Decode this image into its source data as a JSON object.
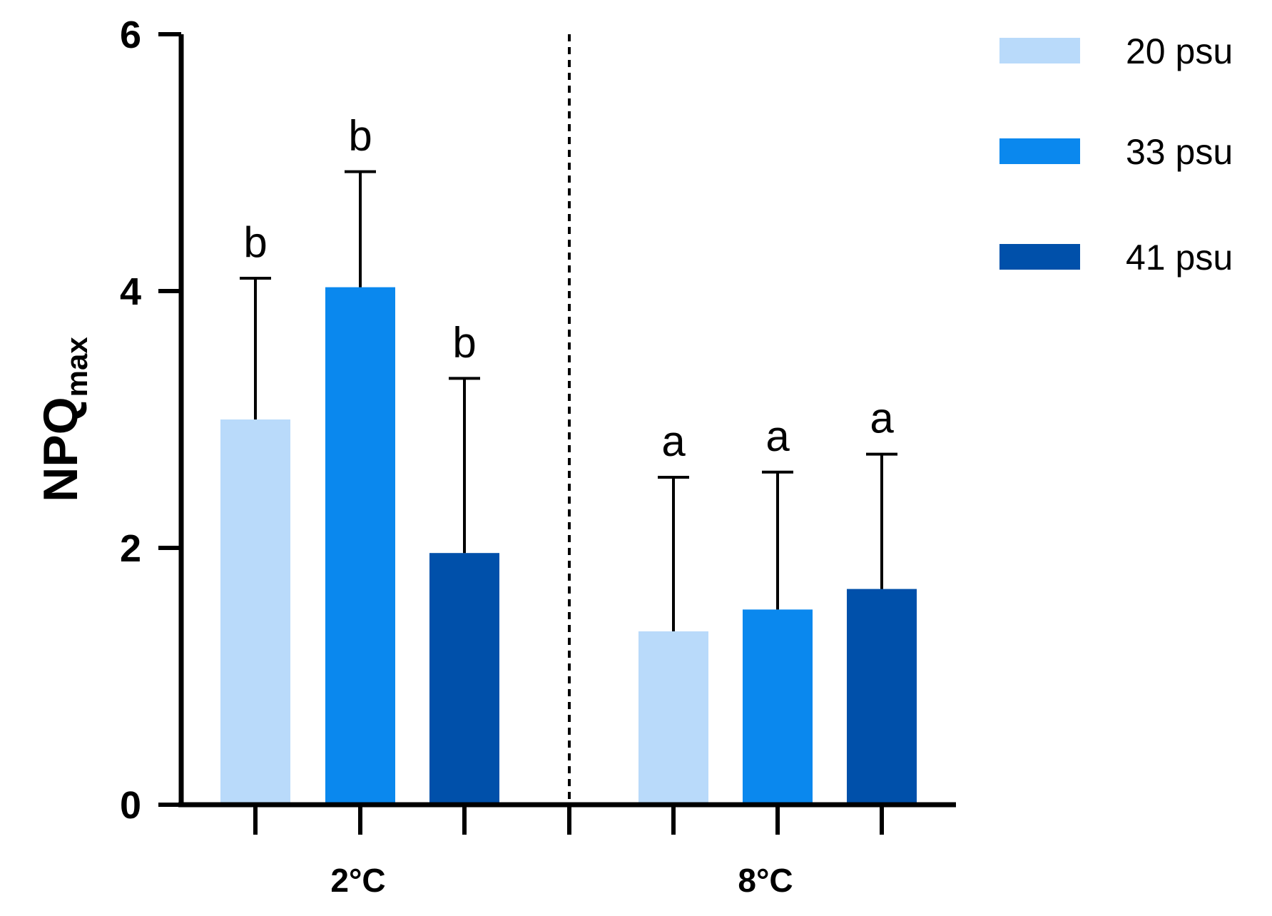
{
  "chart_data": {
    "type": "bar",
    "ylabel": {
      "main": "NPQ",
      "sub": "max"
    },
    "xlabel": "",
    "ylim": [
      0,
      6
    ],
    "yticks": [
      "0",
      "2",
      "4",
      "6"
    ],
    "grid": false,
    "legend_position": "top-right",
    "groups": [
      "2°C",
      "8°C"
    ],
    "series": [
      {
        "name": "20 psu",
        "color": "#b9dafa",
        "values": [
          3.0,
          1.35
        ],
        "errors": [
          1.1,
          1.2
        ],
        "letters": [
          "b",
          "a"
        ]
      },
      {
        "name": "33 psu",
        "color": "#0a88ee",
        "values": [
          4.03,
          1.52
        ],
        "errors": [
          0.9,
          1.07
        ],
        "letters": [
          "b",
          "a"
        ]
      },
      {
        "name": "41 psu",
        "color": "#0050aa",
        "values": [
          1.96,
          1.68
        ],
        "errors": [
          1.36,
          1.05
        ],
        "letters": [
          "b",
          "a"
        ]
      }
    ],
    "group_separator": "dashed"
  }
}
